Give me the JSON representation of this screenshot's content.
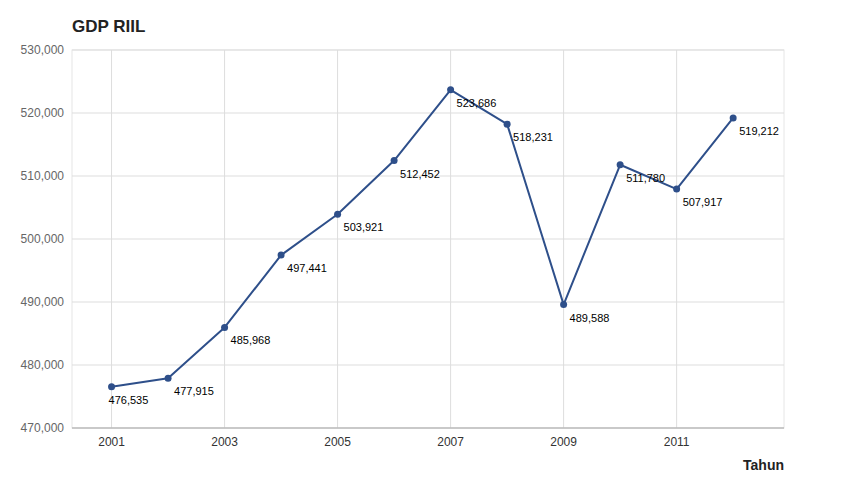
{
  "chart_data": {
    "type": "line",
    "title": "GDP RIIL",
    "xlabel": "Tahun",
    "x": [
      2001,
      2002,
      2003,
      2004,
      2005,
      2006,
      2007,
      2008,
      2009,
      2010,
      2011,
      2012
    ],
    "values": [
      476535,
      477915,
      485968,
      497441,
      503921,
      512452,
      523686,
      518231,
      489588,
      511780,
      507917,
      519212
    ],
    "value_labels": [
      "476,535",
      "477,915",
      "485,968",
      "497,441",
      "503,921",
      "512,452",
      "523,686",
      "518,231",
      "489,588",
      "511,780",
      "507,917",
      "519,212"
    ],
    "color": "#2E4F8A",
    "marker": "circle",
    "line_style": "solid",
    "xlim": [
      2000.3,
      2012.9
    ],
    "xticks": [
      2001,
      2003,
      2005,
      2007,
      2009,
      2011
    ],
    "ylim": [
      470000,
      530000
    ],
    "yticks": [
      {
        "value": 470000,
        "label": "470,000"
      },
      {
        "value": 480000,
        "label": "480,000"
      },
      {
        "value": 490000,
        "label": "490,000"
      },
      {
        "value": 500000,
        "label": "500,000"
      },
      {
        "value": 510000,
        "label": "510,000"
      },
      {
        "value": 520000,
        "label": "520,000"
      },
      {
        "value": 530000,
        "label": "530,000"
      }
    ],
    "grid": true,
    "data_labels": true
  }
}
